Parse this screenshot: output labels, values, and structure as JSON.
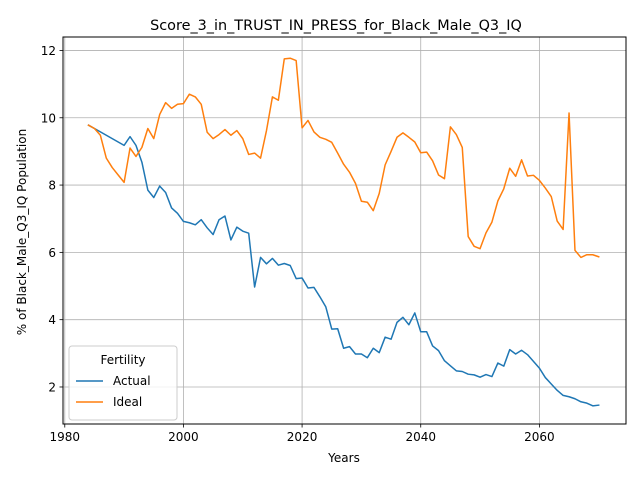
{
  "chart_data": {
    "type": "line",
    "title": "Score_3_in_TRUST_IN_PRESS_for_Black_Male_Q3_IQ",
    "xlabel": "Years",
    "ylabel": "% of Black_Male_Q3_IQ Population",
    "xlim": [
      1979.7,
      2074.6
    ],
    "ylim": [
      0.9,
      12.4
    ],
    "xticks": [
      1980,
      2000,
      2020,
      2040,
      2060
    ],
    "yticks": [
      2,
      4,
      6,
      8,
      10,
      12
    ],
    "grid": true,
    "legend": {
      "title": "Fertility",
      "position": "lower-left"
    },
    "series": [
      {
        "name": "Actual",
        "color": "#1f77b4",
        "x": [
          1984,
          1985,
          1986,
          1987,
          1988,
          1989,
          1990,
          1991,
          1992,
          1993,
          1994,
          1995,
          1996,
          1997,
          1998,
          1999,
          2000,
          2001,
          2002,
          2003,
          2004,
          2005,
          2006,
          2007,
          2008,
          2009,
          2010,
          2011,
          2012,
          2013,
          2014,
          2015,
          2016,
          2017,
          2018,
          2019,
          2020,
          2021,
          2022,
          2023,
          2024,
          2025,
          2026,
          2027,
          2028,
          2029,
          2030,
          2031,
          2032,
          2033,
          2034,
          2035,
          2036,
          2037,
          2038,
          2039,
          2040,
          2041,
          2042,
          2043,
          2044,
          2045,
          2046,
          2047,
          2048,
          2049,
          2050,
          2051,
          2052,
          2053,
          2054,
          2055,
          2056,
          2057,
          2058,
          2059,
          2060,
          2061,
          2062,
          2063,
          2064,
          2065,
          2066,
          2067,
          2068,
          2069,
          2070
        ],
        "y": [
          9.78,
          9.68,
          9.58,
          9.48,
          9.38,
          9.28,
          9.18,
          9.44,
          9.18,
          8.68,
          7.85,
          7.63,
          7.97,
          7.78,
          7.32,
          7.16,
          6.92,
          6.88,
          6.82,
          6.97,
          6.73,
          6.53,
          6.97,
          7.08,
          6.37,
          6.75,
          6.63,
          6.57,
          4.97,
          5.85,
          5.66,
          5.82,
          5.62,
          5.67,
          5.61,
          5.22,
          5.24,
          4.94,
          4.96,
          4.68,
          4.38,
          3.72,
          3.73,
          3.15,
          3.2,
          2.98,
          2.98,
          2.87,
          3.15,
          3.02,
          3.48,
          3.42,
          3.92,
          4.07,
          3.85,
          4.2,
          3.64,
          3.64,
          3.22,
          3.08,
          2.78,
          2.63,
          2.48,
          2.46,
          2.38,
          2.36,
          2.29,
          2.37,
          2.31,
          2.71,
          2.62,
          3.11,
          2.98,
          3.09,
          2.96,
          2.76,
          2.56,
          2.28,
          2.09,
          1.9,
          1.75,
          1.71,
          1.65,
          1.56,
          1.52,
          1.44,
          1.46
        ]
      },
      {
        "name": "Ideal",
        "color": "#ff7f0e",
        "x": [
          1984,
          1985,
          1986,
          1987,
          1988,
          1989,
          1990,
          1991,
          1992,
          1993,
          1994,
          1995,
          1996,
          1997,
          1998,
          1999,
          2000,
          2001,
          2002,
          2003,
          2004,
          2005,
          2006,
          2007,
          2008,
          2009,
          2010,
          2011,
          2012,
          2013,
          2014,
          2015,
          2016,
          2017,
          2018,
          2019,
          2020,
          2021,
          2022,
          2023,
          2024,
          2025,
          2026,
          2027,
          2028,
          2029,
          2030,
          2031,
          2032,
          2033,
          2034,
          2035,
          2036,
          2037,
          2038,
          2039,
          2040,
          2041,
          2042,
          2043,
          2044,
          2045,
          2046,
          2047,
          2048,
          2049,
          2050,
          2051,
          2052,
          2053,
          2054,
          2055,
          2056,
          2057,
          2058,
          2059,
          2060,
          2061,
          2062,
          2063,
          2064,
          2065,
          2066,
          2067,
          2068,
          2069,
          2070
        ],
        "y": [
          9.78,
          9.68,
          9.48,
          8.8,
          8.52,
          8.3,
          8.08,
          9.1,
          8.85,
          9.12,
          9.68,
          9.38,
          10.1,
          10.45,
          10.28,
          10.4,
          10.42,
          10.7,
          10.62,
          10.4,
          9.57,
          9.38,
          9.5,
          9.65,
          9.48,
          9.62,
          9.38,
          8.91,
          8.95,
          8.8,
          9.62,
          10.62,
          10.52,
          11.75,
          11.77,
          11.7,
          9.7,
          9.92,
          9.58,
          9.42,
          9.36,
          9.27,
          8.95,
          8.62,
          8.38,
          8.05,
          7.52,
          7.49,
          7.24,
          7.75,
          8.6,
          9.0,
          9.42,
          9.55,
          9.42,
          9.28,
          8.96,
          8.98,
          8.72,
          8.3,
          8.19,
          9.73,
          9.5,
          9.12,
          6.47,
          6.18,
          6.11,
          6.58,
          6.9,
          7.53,
          7.89,
          8.5,
          8.26,
          8.75,
          8.27,
          8.29,
          8.14,
          7.91,
          7.66,
          6.93,
          6.68,
          10.14,
          6.06,
          5.85,
          5.93,
          5.93,
          5.87
        ]
      }
    ]
  }
}
